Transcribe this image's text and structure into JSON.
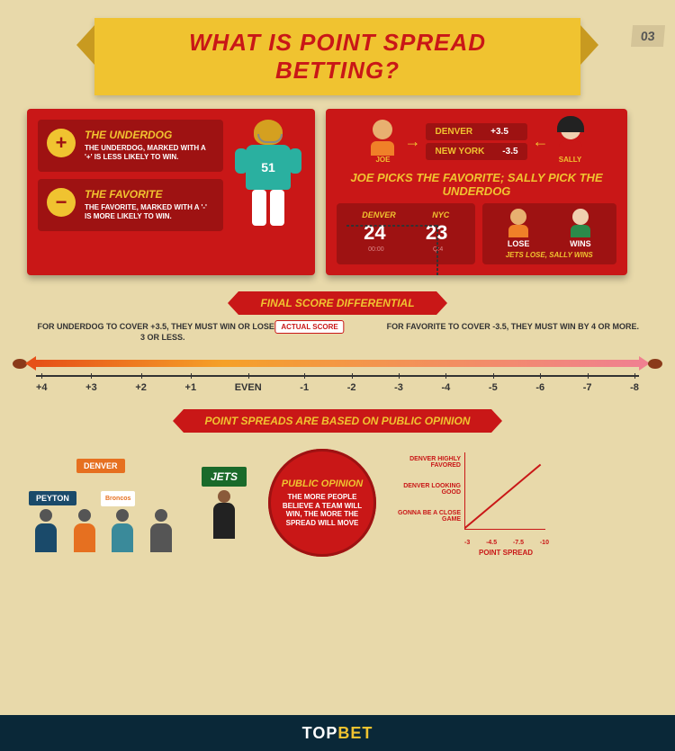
{
  "page_number": "03",
  "title": "WHAT IS POINT SPREAD BETTING?",
  "definitions": {
    "underdog": {
      "symbol": "+",
      "title": "THE UNDERDOG",
      "text": "THE UNDERDOG, MARKED WITH A '+' IS LESS LIKELY TO WIN."
    },
    "favorite": {
      "symbol": "−",
      "title": "THE FAVORITE",
      "text": "THE FAVORITE, MARKED WITH A '-' IS MORE LIKELY TO WIN."
    }
  },
  "player_number": "51",
  "picks": {
    "joe": {
      "name": "JOE",
      "body_color": "#f08028"
    },
    "sally": {
      "name": "SALLY",
      "body_color": "#c91717"
    },
    "lines": [
      {
        "team": "DENVER",
        "spread": "+3.5"
      },
      {
        "team": "NEW YORK",
        "spread": "-3.5"
      }
    ],
    "headline": "JOE PICKS THE FAVORITE; SALLY PICK THE UNDERDOG",
    "score": {
      "team1": "DENVER",
      "team2": "NYC",
      "s1": "24",
      "s2": "23",
      "clock": "00:00",
      "qtr": "Q:4"
    },
    "outcome": {
      "joe": "LOSE",
      "sally": "WINS",
      "caption": "JETS LOSE, SALLY WINS"
    }
  },
  "differential": {
    "banner": "FINAL SCORE DIFFERENTIAL",
    "left_text": "FOR UNDERDOG TO COVER +3.5, THEY MUST WIN OR LOSE BY 3 OR LESS.",
    "right_text": "FOR FAVORITE TO COVER -3.5, THEY MUST WIN BY 4 OR MORE.",
    "actual": "ACTUAL SCORE",
    "ticks": [
      "+4",
      "+3",
      "+2",
      "+1",
      "EVEN",
      "-1",
      "-2",
      "-3",
      "-4",
      "-5",
      "-6",
      "-7",
      "-8"
    ]
  },
  "opinion": {
    "banner": "POINT SPREADS ARE BASED ON PUBLIC OPINION",
    "signs": {
      "denver": "DENVER",
      "peyton": "PEYTON",
      "broncos": "Broncos",
      "jets": "JETS"
    },
    "circle": {
      "title": "PUBLIC OPINION",
      "text": "THE MORE PEOPLE BELIEVE A TEAM WILL WIN, THE MORE THE SPREAD WILL MOVE"
    },
    "chart": {
      "y_labels": [
        "DENVER HIGHLY FAVORED",
        "DENVER LOOKING GOOD",
        "GONNA BE A CLOSE GAME"
      ],
      "x_labels": [
        "-3",
        "-4.5",
        "-7.5",
        "-10"
      ],
      "x_axis": "POINT SPREAD"
    }
  },
  "footer": {
    "brand_a": "TOP",
    "brand_b": "BET"
  },
  "colors": {
    "bg": "#e8d9aa",
    "red": "#c91717",
    "dark_red": "#9e1212",
    "yellow": "#f0c330",
    "navy": "#0a2838"
  }
}
